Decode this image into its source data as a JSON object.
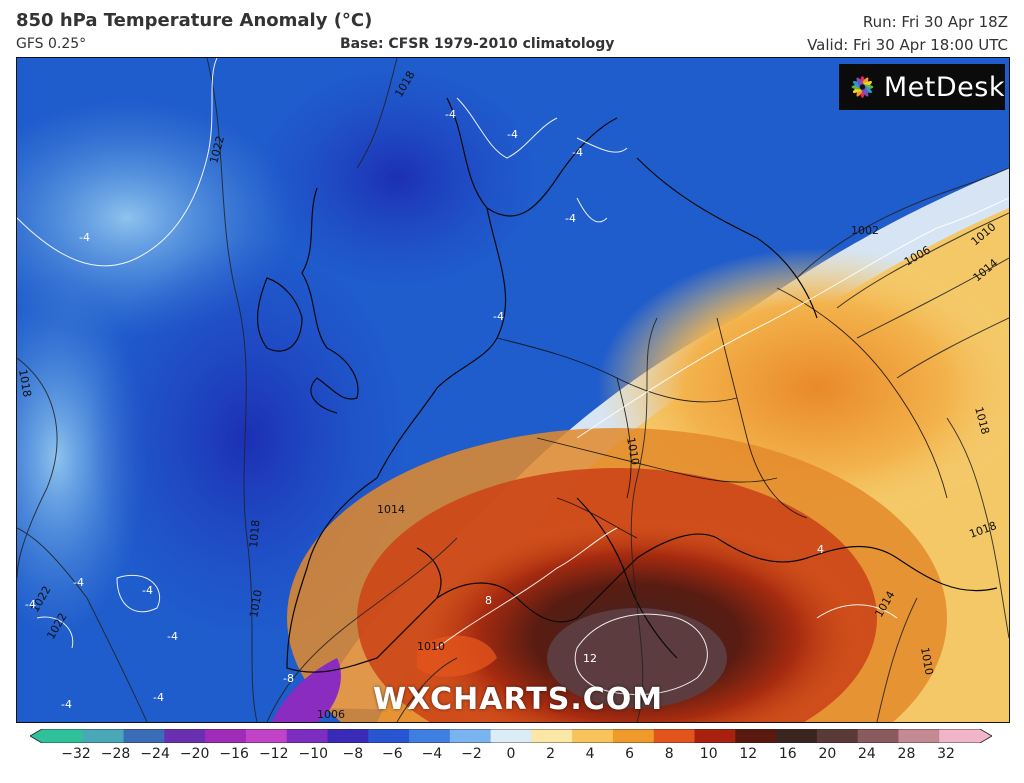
{
  "header": {
    "title": "850 hPa Temperature Anomaly (°C)",
    "model": "GFS 0.25°",
    "base": "Base: CFSR 1979-2010 climatology",
    "run": "Run: Fri 30 Apr 18Z",
    "valid": "Valid: Fri 30 Apr 18:00 UTC"
  },
  "logo": {
    "text": "MetDesk",
    "icon": "flower-icon"
  },
  "watermark": "WXCHARTS.COM",
  "map": {
    "isobar_labels": [
      "1018",
      "1022",
      "1018",
      "1022",
      "1018",
      "1010",
      "1002",
      "1006",
      "1010",
      "1014",
      "1018",
      "1018",
      "1014",
      "1010",
      "1014",
      "1022",
      "1010",
      "1010",
      "1006"
    ],
    "anomaly_labels": [
      "-4",
      "-4",
      "-4",
      "-4",
      "-4",
      "-4",
      "-4",
      "-4",
      "-4",
      "-4",
      "-8",
      "-4",
      "8",
      "12",
      "-4",
      "4"
    ]
  },
  "colorbar": {
    "ticks": [
      "−32",
      "−28",
      "−24",
      "−20",
      "−16",
      "−12",
      "−10",
      "−8",
      "−6",
      "−4",
      "−2",
      "0",
      "2",
      "4",
      "6",
      "8",
      "10",
      "12",
      "16",
      "20",
      "24",
      "28",
      "32"
    ],
    "colors": [
      "#2fc29a",
      "#4aa8b8",
      "#3b6cb8",
      "#6a2fb0",
      "#a02bb8",
      "#c043c8",
      "#7b2ec0",
      "#3a2ab8",
      "#2a55d0",
      "#3d7ee0",
      "#7bb3ee",
      "#dcecf6",
      "#fbe7a6",
      "#f7c35a",
      "#f09a2c",
      "#e2541c",
      "#a8200e",
      "#5a1a10",
      "#3a2420",
      "#5a3a38",
      "#8a5a5e",
      "#c48a94",
      "#f0b6c8"
    ]
  }
}
